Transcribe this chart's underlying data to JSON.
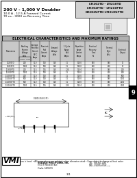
{
  "title_line1": "200 V - 1,000 V Doubler",
  "title_line2": "10.0 A - 12.5 A Forward Current",
  "title_line3": "70 ns - 3000 ns Recovery Time",
  "part_numbers": "LTI202TD - LTI210TD\nLTI302FTD - LTI210FTD\nLTI202UFTD-LTI310UFTD",
  "section_number": "9",
  "table_title": "ELECTRICAL CHARACTERISTICS AND MAXIMUM RATINGS",
  "table_headers": [
    "Parameters",
    "Blocking\nReverse\nVoltage",
    "Average\nRectified\nCurrent\n85°C\nAmps",
    "Transient\nForward\nCurrent\nAmps",
    "Forward\nVoltage",
    "1 Cycle\nSurge\nForward\npeak Amp\nAmps",
    "Repetitive\nSurge\nCurrent\nAmps",
    "Electrical\nRecovery\nTime\nNs",
    "Thermal\nRqjst"
  ],
  "footer_text": "Dimensions in (mm) • All temperatures are ambient unless otherwise noted • Case subject to change without notice",
  "company_name": "VOLTAGE MULTIPLIERS, INC.",
  "company_address": "8711 W. Roosevelt Ave.\nVisalia, CA 93291",
  "tel": "TEL    800-601-1450",
  "fax": "FAX    559-651-0740",
  "website": "www.voltagemultipliers.com",
  "logo_text": "VMI",
  "page_num": "321",
  "bg_color": "#ffffff",
  "table_header_bg": "#c0c0c0",
  "table_row_colors": [
    "#e8e8e8",
    "#ffffff"
  ],
  "border_color": "#000000",
  "text_color": "#000000",
  "gray_text": "#555555"
}
